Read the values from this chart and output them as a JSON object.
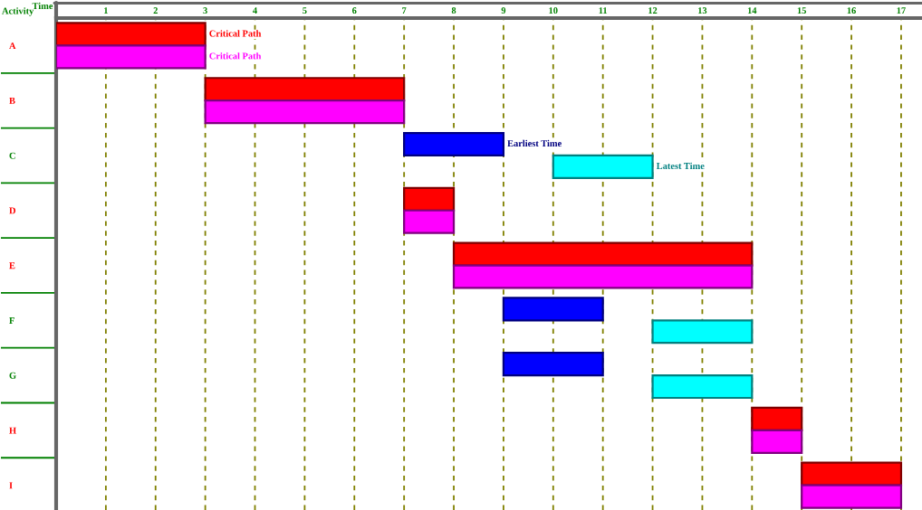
{
  "chart_data": {
    "type": "bar",
    "orientation": "horizontal",
    "xlabel": "Time",
    "ylabel": "Activity",
    "categories": [
      "A",
      "B",
      "C",
      "D",
      "E",
      "F",
      "G",
      "H",
      "I"
    ],
    "series": [
      {
        "name": "Critical Path",
        "color": "#ff0000",
        "base": [
          0,
          3,
          null,
          7,
          8,
          null,
          null,
          14,
          15
        ],
        "values": [
          3,
          4,
          null,
          1,
          6,
          null,
          null,
          1,
          2
        ]
      },
      {
        "name": "Critical Path",
        "color": "#ff00ff",
        "base": [
          0,
          3,
          null,
          7,
          8,
          null,
          null,
          14,
          15
        ],
        "values": [
          3,
          4,
          null,
          1,
          6,
          null,
          null,
          1,
          2
        ]
      },
      {
        "name": "Earliest Time",
        "color": "#0000ff",
        "base": [
          null,
          null,
          7,
          null,
          null,
          9,
          9,
          null,
          null
        ],
        "values": [
          null,
          null,
          2,
          null,
          null,
          2,
          2,
          null,
          null
        ]
      },
      {
        "name": "Latest Time",
        "color": "#00ffff",
        "base": [
          null,
          null,
          10,
          null,
          null,
          12,
          12,
          null,
          null
        ],
        "values": [
          null,
          null,
          2,
          null,
          null,
          2,
          2,
          null,
          null
        ]
      }
    ],
    "xlim": [
      0,
      17.42
    ],
    "xticks": [
      1,
      2,
      3,
      4,
      5,
      6,
      7,
      8,
      9,
      10,
      11,
      12,
      13,
      14,
      15,
      16,
      17
    ],
    "grid": "x"
  }
}
